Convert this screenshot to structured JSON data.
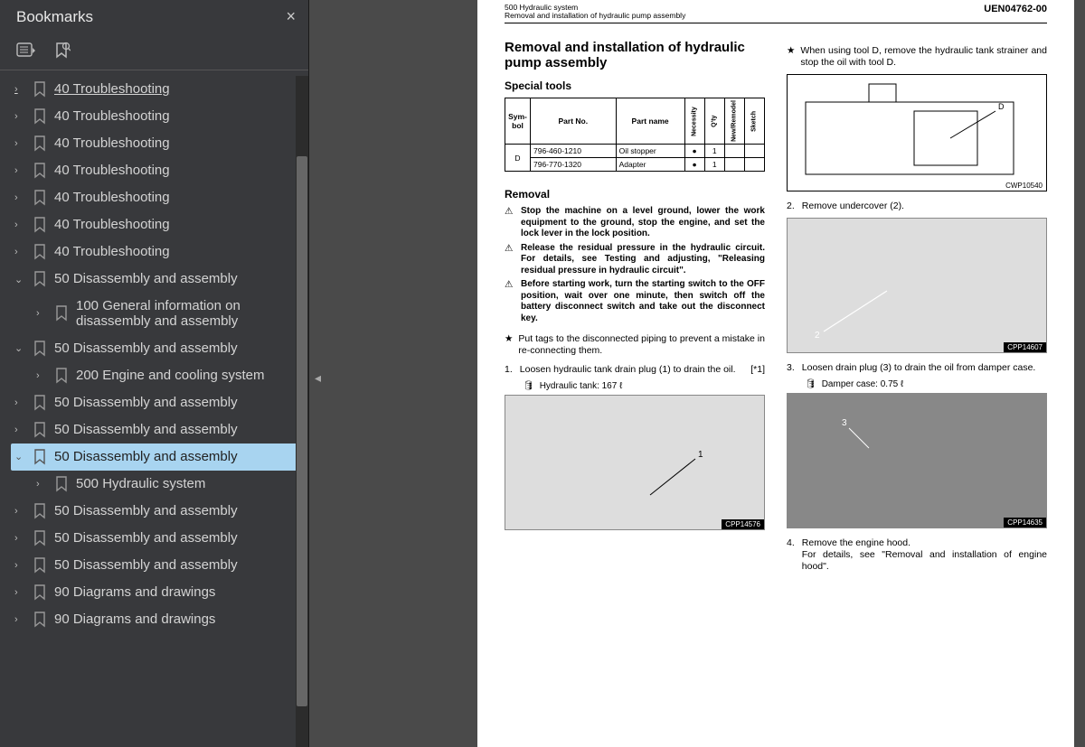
{
  "sidebar": {
    "title": "Bookmarks",
    "close_label": "×",
    "items": [
      {
        "label": "40 Troubleshooting",
        "level": 0,
        "expanded": false,
        "hovered": true
      },
      {
        "label": "40 Troubleshooting",
        "level": 0,
        "expanded": false
      },
      {
        "label": "40 Troubleshooting",
        "level": 0,
        "expanded": false
      },
      {
        "label": "40 Troubleshooting",
        "level": 0,
        "expanded": false
      },
      {
        "label": "40 Troubleshooting",
        "level": 0,
        "expanded": false
      },
      {
        "label": "40 Troubleshooting",
        "level": 0,
        "expanded": false
      },
      {
        "label": "40 Troubleshooting",
        "level": 0,
        "expanded": false
      },
      {
        "label": "50 Disassembly and assembly",
        "level": 0,
        "expanded": true
      },
      {
        "label": "100 General information on disassembly and assembly",
        "level": 1,
        "expanded": false
      },
      {
        "label": "50 Disassembly and assembly",
        "level": 0,
        "expanded": true
      },
      {
        "label": "200 Engine and cooling system",
        "level": 1,
        "expanded": false
      },
      {
        "label": "50 Disassembly and assembly",
        "level": 0,
        "expanded": false
      },
      {
        "label": "50 Disassembly and assembly",
        "level": 0,
        "expanded": false
      },
      {
        "label": "50 Disassembly and assembly",
        "level": 0,
        "expanded": true,
        "selected": true
      },
      {
        "label": "500 Hydraulic system",
        "level": 1,
        "expanded": false
      },
      {
        "label": "50 Disassembly and assembly",
        "level": 0,
        "expanded": false
      },
      {
        "label": "50 Disassembly and assembly",
        "level": 0,
        "expanded": false
      },
      {
        "label": "50 Disassembly and assembly",
        "level": 0,
        "expanded": false
      },
      {
        "label": "90 Diagrams and drawings",
        "level": 0,
        "expanded": false
      },
      {
        "label": "90 Diagrams and drawings",
        "level": 0,
        "expanded": false
      }
    ],
    "scroll": {
      "thumb_top_pct": 12,
      "thumb_height_pct": 82
    }
  },
  "doc": {
    "header": {
      "section_top": "500 Hydraulic system",
      "section_sub": "Removal and installation of hydraulic pump assembly",
      "code": "UEN04762-00"
    },
    "title": "Removal and installation of hydraulic pump assembly",
    "special_tools_heading": "Special tools",
    "tools_table": {
      "cols": [
        "Sym-bol",
        "Part No.",
        "Part name",
        "Necessity",
        "Q'ty",
        "New/Remodel",
        "Sketch"
      ],
      "symbol": "D",
      "rows": [
        {
          "partno": "796-460-1210",
          "name": "Oil stopper",
          "nec": "●",
          "qty": "1"
        },
        {
          "partno": "796-770-1320",
          "name": "Adapter",
          "nec": "●",
          "qty": "1"
        }
      ]
    },
    "removal_heading": "Removal",
    "warnings": [
      "Stop the machine on a level ground, lower the work equipment to the ground, stop the engine, and set the lock lever in the lock position.",
      "Release the residual pressure in the hydraulic circuit. For details, see Testing and adjusting, \"Releasing residual pressure in hydraulic circuit\".",
      "Before starting work, turn the starting switch to the OFF position, wait over one minute, then switch off the battery disconnect switch and take out the disconnect key."
    ],
    "star_note_left": "Put tags to the disconnected piping to prevent a mistake in re-connecting them.",
    "step1": {
      "num": "1.",
      "text": "Loosen hydraulic tank drain plug (1) to drain the oil.",
      "ref": "[*1]",
      "fluid": "Hydraulic tank: 167 ℓ",
      "fig_label": "CPP14576"
    },
    "right": {
      "star_d": "When using tool D, remove the hydraulic tank strainer and stop the oil with tool D.",
      "fig_d_label": "CWP10540",
      "fig_d_marker": "D",
      "step2": {
        "num": "2.",
        "text": "Remove undercover (2).",
        "fig_label": "CPP14607",
        "marker": "2"
      },
      "step3": {
        "num": "3.",
        "text": "Loosen drain plug (3) to drain the oil from damper case.",
        "fluid": "Damper case: 0.75 ℓ",
        "fig_label": "CPP14635",
        "marker": "3"
      },
      "step4": {
        "num": "4.",
        "text": "Remove the engine hood.",
        "text2": "For details, see \"Removal and installation of engine hood\"."
      }
    }
  },
  "colors": {
    "sidebar_bg": "#38393c",
    "selected_bg": "#a8d4f0",
    "page_bg": "#ffffff",
    "gutter_bg": "#4a4a4a"
  }
}
